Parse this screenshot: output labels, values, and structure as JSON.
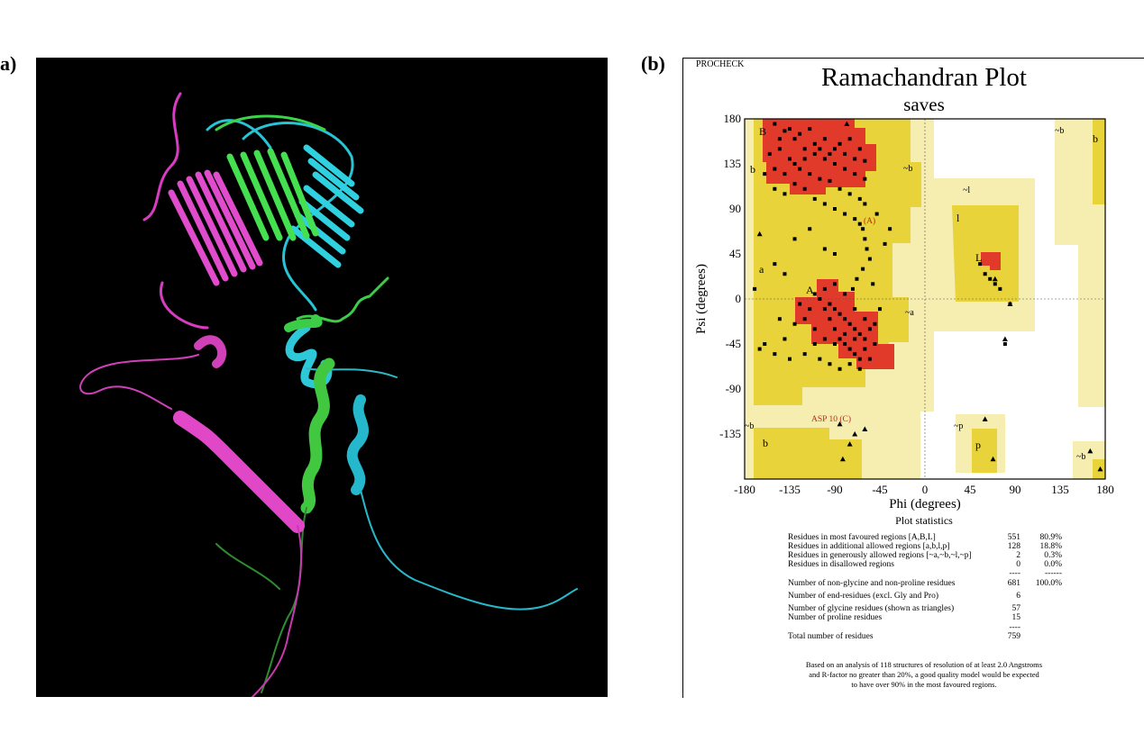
{
  "panel_a": {
    "label": "a)"
  },
  "panel_b": {
    "label": "(b)"
  },
  "chart_data": {
    "type": "scatter",
    "header": "PROCHECK",
    "title": "Ramachandran Plot",
    "subtitle": "saves",
    "xlabel": "Phi (degrees)",
    "ylabel": "Psi (degrees)",
    "xlim": [
      -180,
      180
    ],
    "ylim": [
      -180,
      180
    ],
    "xticks": [
      -180,
      -135,
      -90,
      -45,
      0,
      45,
      90,
      135,
      180
    ],
    "yticks": [
      180,
      135,
      90,
      45,
      0,
      -45,
      -90,
      -135
    ],
    "region_labels": [
      "A",
      "B",
      "L",
      "a",
      "b",
      "l",
      "p",
      "~a",
      "~b",
      "~l",
      "~p"
    ],
    "annotations": [
      "ASP 10 (C)",
      "(A)"
    ],
    "region_colors": {
      "most_favoured": "#e23a2a",
      "additional_allowed": "#e8d43a",
      "generously_allowed": "#f5eeb0",
      "disallowed": "#ffffff"
    },
    "series": [
      {
        "marker": "square",
        "points": [
          [
            -150,
            175
          ],
          [
            -140,
            168
          ],
          [
            -130,
            160
          ],
          [
            -120,
            150
          ],
          [
            -110,
            145
          ],
          [
            -100,
            140
          ],
          [
            -90,
            135
          ],
          [
            -80,
            130
          ],
          [
            -70,
            125
          ],
          [
            -60,
            120
          ],
          [
            -145,
            150
          ],
          [
            -135,
            140
          ],
          [
            -125,
            130
          ],
          [
            -115,
            125
          ],
          [
            -105,
            120
          ],
          [
            -95,
            118
          ],
          [
            -85,
            110
          ],
          [
            -75,
            105
          ],
          [
            -65,
            100
          ],
          [
            -60,
            95
          ],
          [
            -150,
            130
          ],
          [
            -140,
            125
          ],
          [
            -130,
            135
          ],
          [
            -120,
            140
          ],
          [
            -110,
            155
          ],
          [
            -100,
            160
          ],
          [
            -90,
            150
          ],
          [
            -80,
            145
          ],
          [
            -70,
            140
          ],
          [
            -60,
            138
          ],
          [
            -155,
            145
          ],
          [
            -145,
            160
          ],
          [
            -135,
            170
          ],
          [
            -125,
            165
          ],
          [
            -115,
            170
          ],
          [
            -105,
            150
          ],
          [
            -95,
            145
          ],
          [
            -85,
            155
          ],
          [
            -75,
            160
          ],
          [
            -65,
            150
          ],
          [
            -160,
            125
          ],
          [
            -150,
            110
          ],
          [
            -140,
            105
          ],
          [
            -130,
            115
          ],
          [
            -120,
            110
          ],
          [
            -110,
            100
          ],
          [
            -100,
            95
          ],
          [
            -90,
            90
          ],
          [
            -80,
            85
          ],
          [
            -70,
            80
          ],
          [
            -65,
            75
          ],
          [
            -62,
            70
          ],
          [
            -60,
            60
          ],
          [
            -58,
            50
          ],
          [
            -55,
            40
          ],
          [
            -62,
            30
          ],
          [
            -68,
            20
          ],
          [
            -72,
            10
          ],
          [
            -100,
            -10
          ],
          [
            -95,
            -20
          ],
          [
            -90,
            -30
          ],
          [
            -85,
            -40
          ],
          [
            -80,
            -45
          ],
          [
            -75,
            -50
          ],
          [
            -70,
            -55
          ],
          [
            -65,
            -60
          ],
          [
            -60,
            -40
          ],
          [
            -65,
            -35
          ],
          [
            -70,
            -30
          ],
          [
            -75,
            -25
          ],
          [
            -80,
            -20
          ],
          [
            -85,
            -15
          ],
          [
            -90,
            -10
          ],
          [
            -95,
            -5
          ],
          [
            -105,
            0
          ],
          [
            -110,
            5
          ],
          [
            -100,
            10
          ],
          [
            -90,
            15
          ],
          [
            -80,
            5
          ],
          [
            -70,
            -10
          ],
          [
            -60,
            -20
          ],
          [
            -55,
            -30
          ],
          [
            -50,
            -45
          ],
          [
            -60,
            -50
          ],
          [
            -70,
            -40
          ],
          [
            -80,
            -35
          ],
          [
            -90,
            -45
          ],
          [
            -100,
            -40
          ],
          [
            -110,
            -30
          ],
          [
            -120,
            -20
          ],
          [
            -115,
            -10
          ],
          [
            -125,
            -5
          ],
          [
            -130,
            -25
          ],
          [
            -140,
            -40
          ],
          [
            -150,
            -55
          ],
          [
            -160,
            -45
          ],
          [
            -145,
            -20
          ],
          [
            -135,
            -60
          ],
          [
            -120,
            -55
          ],
          [
            -110,
            -45
          ],
          [
            -105,
            -60
          ],
          [
            -95,
            -65
          ],
          [
            -85,
            -70
          ],
          [
            -75,
            -65
          ],
          [
            -65,
            -70
          ],
          [
            -55,
            -60
          ],
          [
            -50,
            -25
          ],
          [
            -45,
            -10
          ],
          [
            -52,
            15
          ],
          [
            -40,
            55
          ],
          [
            -35,
            70
          ],
          [
            -48,
            85
          ],
          [
            -130,
            60
          ],
          [
            -115,
            70
          ],
          [
            -100,
            50
          ],
          [
            -90,
            45
          ],
          [
            -150,
            35
          ],
          [
            -140,
            25
          ],
          [
            -165,
            -50
          ],
          [
            -170,
            10
          ],
          [
            55,
            35
          ],
          [
            60,
            25
          ],
          [
            65,
            20
          ],
          [
            70,
            15
          ],
          [
            75,
            10
          ],
          [
            85,
            -5
          ],
          [
            80,
            -45
          ]
        ]
      },
      {
        "marker": "triangle",
        "points": [
          [
            -78,
            175
          ],
          [
            -165,
            65
          ],
          [
            -85,
            -125
          ],
          [
            -70,
            -135
          ],
          [
            -60,
            -130
          ],
          [
            -75,
            -145
          ],
          [
            -82,
            -160
          ],
          [
            60,
            -120
          ],
          [
            68,
            -160
          ],
          [
            165,
            -152
          ],
          [
            175,
            -170
          ],
          [
            85,
            -5
          ],
          [
            80,
            -40
          ],
          [
            70,
            20
          ]
        ]
      }
    ]
  },
  "statistics": {
    "title": "Plot statistics",
    "rows": [
      {
        "label": "Residues in most favoured regions  [A,B,L]",
        "count": "551",
        "pct": "80.9%"
      },
      {
        "label": "Residues in additional allowed regions  [a,b,l,p]",
        "count": "128",
        "pct": "18.8%"
      },
      {
        "label": "Residues in generously allowed regions  [~a,~b,~l,~p]",
        "count": "2",
        "pct": "0.3%"
      },
      {
        "label": "Residues in disallowed regions",
        "count": "0",
        "pct": "0.0%"
      },
      {
        "label": "",
        "count": "----",
        "pct": "------"
      },
      {
        "label": "Number of non-glycine and non-proline residues",
        "count": "681",
        "pct": "100.0%"
      },
      {
        "label": "Number of end-residues (excl. Gly and Pro)",
        "count": "6",
        "pct": ""
      },
      {
        "label": "Number of glycine residues (shown as triangles)",
        "count": "57",
        "pct": ""
      },
      {
        "label": "Number of proline residues",
        "count": "15",
        "pct": ""
      },
      {
        "label": "",
        "count": "----",
        "pct": ""
      },
      {
        "label": "Total number of residues",
        "count": "759",
        "pct": ""
      }
    ],
    "footnote": [
      "Based on an analysis of 118 structures of resolution of at least 2.0 Angstroms",
      "and R-factor no greater than 20%, a good quality model would be expected",
      "to have over 90% in the most favoured regions."
    ]
  }
}
